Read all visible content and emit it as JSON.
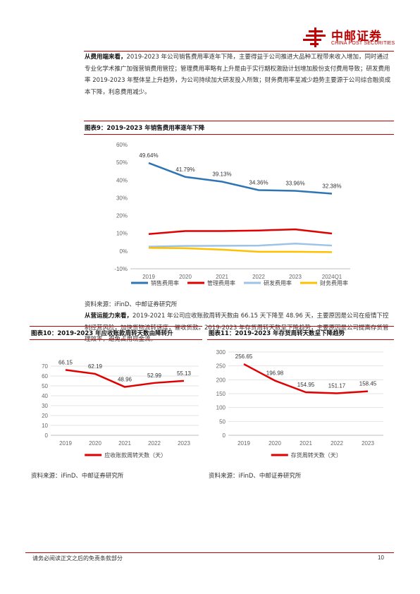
{
  "header": {
    "logo_cn": "中邮证券",
    "logo_en": "CHINA POST SECURITIES"
  },
  "paragraph1": {
    "lead": "从费用端来看，",
    "text": "2019-2023 年公司销售费用率逐年下降，主要得益于公司推进大品种工程带来收入增加，同时通过专业化学术推广加强营销费用管控；管理费用率略有上升是由于实行期权激励计划增加股份支付费用导致；研发费用率 2019-2023 年整体呈上升趋势，为公司持续加大研发投入所致；财务费用率呈减少趋势主要源于公司综合融资成本下降，利息费用减少。"
  },
  "figure9": {
    "title": "图表9：2019-2023 年销售费用率逐年下降",
    "source": "资料来源：iFinD、中邮证券研究所"
  },
  "paragraph2": {
    "lead": "从营运能力来看，",
    "text": "2019-2021 年公司应收账款周转天数由 66.15 天下降至 48.96 天，主要原因是公司在疫情下控制经营风险，加快货物流转速度，催收货款。2019-2023 年存货周转天数呈下降趋势，主要原因是公司提高存货管理效率，避免占用现金流。"
  },
  "figure10": {
    "title": "图表10：2019-2023 年应收账款周转天数由降转升",
    "source": "资料来源：iFinD、中邮证券研究所"
  },
  "figure11": {
    "title": "图表11：2019-2023 年存货周转天数呈下降趋势",
    "source": "资料来源：iFinD、中邮证券研究所"
  },
  "footer": {
    "disclaimer": "请务必阅读正文之后的免责条款部分",
    "page": "10"
  },
  "chart_data": [
    {
      "type": "line",
      "categories": [
        "2019",
        "2020",
        "2021",
        "2022",
        "2023",
        "2024Q1"
      ],
      "ylim": [
        -10,
        60
      ],
      "yticks": [
        "-10%",
        "0%",
        "10%",
        "20%",
        "30%",
        "40%",
        "50%",
        "60%"
      ],
      "series": [
        {
          "name": "销售费用率",
          "color": "#2e75b6",
          "values": [
            49.64,
            41.79,
            39.13,
            34.36,
            33.96,
            32.38
          ],
          "labels": [
            "49.64%",
            "41.79%",
            "39.13%",
            "34.36%",
            "33.96%",
            "32.38%"
          ]
        },
        {
          "name": "管理费用率",
          "color": "#e00000",
          "values": [
            9.6,
            11.3,
            11.3,
            11.6,
            12.2,
            9.9
          ]
        },
        {
          "name": "研发费用率",
          "color": "#9dc3e6",
          "values": [
            2.5,
            2.9,
            3.0,
            3.1,
            4.2,
            3.1
          ]
        },
        {
          "name": "财务费用率",
          "color": "#ffc000",
          "values": [
            1.8,
            1.6,
            0.8,
            -0.4,
            -0.4,
            -0.6
          ]
        }
      ],
      "legend": "bottom",
      "grid": false
    },
    {
      "type": "line",
      "categories": [
        "2019",
        "2020",
        "2021",
        "2022",
        "2023"
      ],
      "ylim": [
        0,
        70
      ],
      "yticks": [
        "0",
        "10",
        "20",
        "30",
        "40",
        "50",
        "60",
        "70"
      ],
      "series": [
        {
          "name": "应收账款周转天数（天）",
          "color": "#e00000",
          "values": [
            66.15,
            62.19,
            48.96,
            52.99,
            55.13
          ],
          "labels": [
            "66.15",
            "62.19",
            "48.96",
            "52.99",
            "55.13"
          ]
        }
      ],
      "legend": "bottom",
      "grid": true
    },
    {
      "type": "line",
      "categories": [
        "2019",
        "2020",
        "2021",
        "2022",
        "2023"
      ],
      "ylim": [
        0,
        300
      ],
      "yticks": [
        "0",
        "50",
        "100",
        "150",
        "200",
        "250",
        "300"
      ],
      "series": [
        {
          "name": "存货周转天数（天）",
          "color": "#e00000",
          "values": [
            256.65,
            196.98,
            154.95,
            151.17,
            158.45
          ],
          "labels": [
            "256.65",
            "196.98",
            "154.95",
            "151.17",
            "158.45"
          ]
        }
      ],
      "legend": "bottom",
      "grid": true
    }
  ]
}
